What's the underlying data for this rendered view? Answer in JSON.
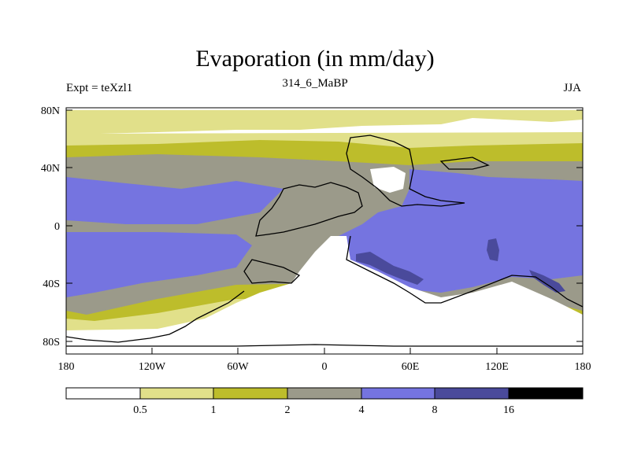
{
  "title": "Evaporation (in mm/day)",
  "left_string": "Expt = teXzl1",
  "center_string": "314_6_MaBP",
  "right_string": "JJA",
  "lat_labels": [
    "80N",
    "40N",
    "0",
    "40S",
    "80S"
  ],
  "lon_labels": [
    "180",
    "120W",
    "60W",
    "0",
    "60E",
    "120E",
    "180"
  ],
  "colorbar": {
    "colors": [
      "#ffffff",
      "#e1e08a",
      "#bdbd2b",
      "#9b9a8a",
      "#7574e0",
      "#4a4a9b",
      "#000000"
    ],
    "labels": [
      "0.5",
      "1",
      "2",
      "4",
      "8",
      "16"
    ]
  }
}
